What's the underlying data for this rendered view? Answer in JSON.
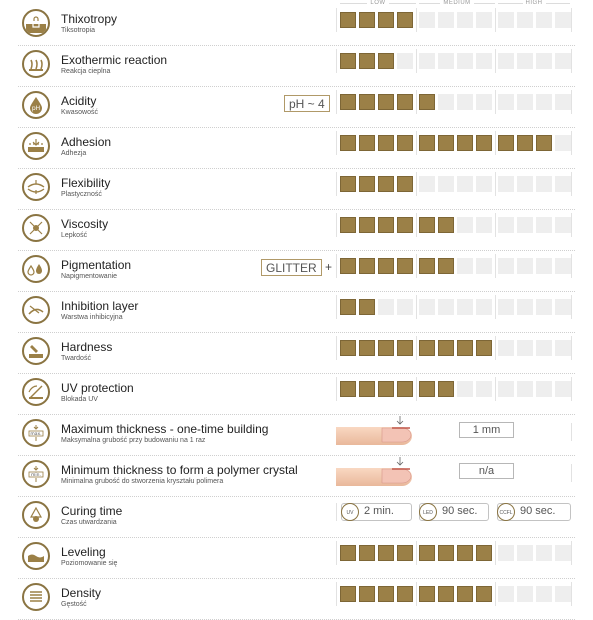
{
  "scale": {
    "low": "LOW",
    "medium": "MEDIUM",
    "high": "HIGH"
  },
  "colors": {
    "accent": "#9b8047",
    "inactive": "#eeeeee"
  },
  "rows": [
    {
      "title": "Thixotropy",
      "sub": "Tiksotropia",
      "icon": "thixotropy-icon",
      "level": 4
    },
    {
      "title": "Exothermic reaction",
      "sub": "Reakcja cieplna",
      "icon": "exothermic-icon",
      "level": 3
    },
    {
      "title": "Acidity",
      "sub": "Kwasowość",
      "icon": "acidity-icon",
      "level": 5,
      "extra": "pH ~ 4"
    },
    {
      "title": "Adhesion",
      "sub": "Adhezja",
      "icon": "adhesion-icon",
      "level": 11
    },
    {
      "title": "Flexibility",
      "sub": "Plastyczność",
      "icon": "flexibility-icon",
      "level": 4
    },
    {
      "title": "Viscosity",
      "sub": "Lepkość",
      "icon": "viscosity-icon",
      "level": 6
    },
    {
      "title": "Pigmentation",
      "sub": "Napigmentowanie",
      "icon": "pigmentation-icon",
      "level": 6,
      "extra": "GLITTER",
      "plus": "+"
    },
    {
      "title": "Inhibition layer",
      "sub": "Warstwa inhibicyjna",
      "icon": "inhibition-icon",
      "level": 2
    },
    {
      "title": "Hardness",
      "sub": "Twardość",
      "icon": "hardness-icon",
      "level": 8
    },
    {
      "title": "UV protection",
      "sub": "Blokada UV",
      "icon": "uv-protection-icon",
      "level": 6
    },
    {
      "title": "Maximum thickness - one-time building",
      "sub": "Maksymalna grubość przy budowaniu na 1 raz",
      "icon": "max-thickness-icon",
      "value": "1 mm",
      "icon_label": "max."
    },
    {
      "title": "Minimum thickness to form a polymer crystal",
      "sub": "Minimalna grubość do stworzenia kryształu polimera",
      "icon": "min-thickness-icon",
      "value": "n/a",
      "icon_label": "min."
    },
    {
      "title": "Curing time",
      "sub": "Czas utwardzania",
      "icon": "curing-icon",
      "cure": [
        {
          "tag": "UV",
          "value": "2 min."
        },
        {
          "tag": "LED",
          "value": "90 sec."
        },
        {
          "tag": "CCFL",
          "value": "90 sec."
        }
      ]
    },
    {
      "title": "Leveling",
      "sub": "Poziomowanie się",
      "icon": "leveling-icon",
      "level": 8
    },
    {
      "title": "Density",
      "sub": "Gęstość",
      "icon": "density-icon",
      "level": 8
    }
  ]
}
